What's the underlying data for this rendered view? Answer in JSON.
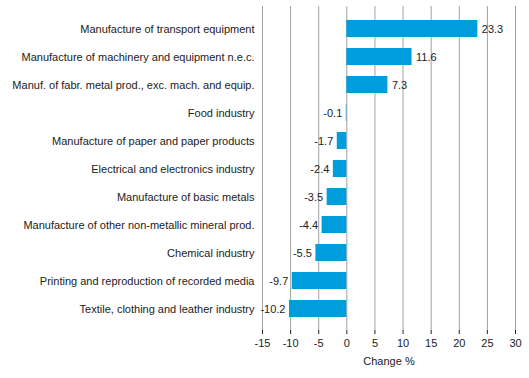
{
  "chart_data": {
    "type": "bar",
    "orientation": "horizontal",
    "categories": [
      "Manufacture of transport equipment",
      "Manufacture of machinery and equipment n.e.c.",
      "Manuf. of fabr. metal prod., exc. mach. and equip.",
      "Food industry",
      "Manufacture of paper and paper products",
      "Electrical and electronics industry",
      "Manufacture of basic metals",
      "Manufacture of other non-metallic mineral prod.",
      "Chemical industry",
      "Printing and reproduction of recorded media",
      "Textile, clothing and leather industry"
    ],
    "values": [
      23.3,
      11.6,
      7.3,
      -0.1,
      -1.7,
      -2.4,
      -3.5,
      -4.4,
      -5.5,
      -9.7,
      -10.2
    ],
    "color": "#009ddc",
    "x_label": "Change %",
    "xlim": [
      -15,
      30
    ],
    "xticks": [
      -15,
      -10,
      -5,
      0,
      5,
      10,
      15,
      20,
      25,
      30
    ],
    "grid": true,
    "data_labels": true
  }
}
